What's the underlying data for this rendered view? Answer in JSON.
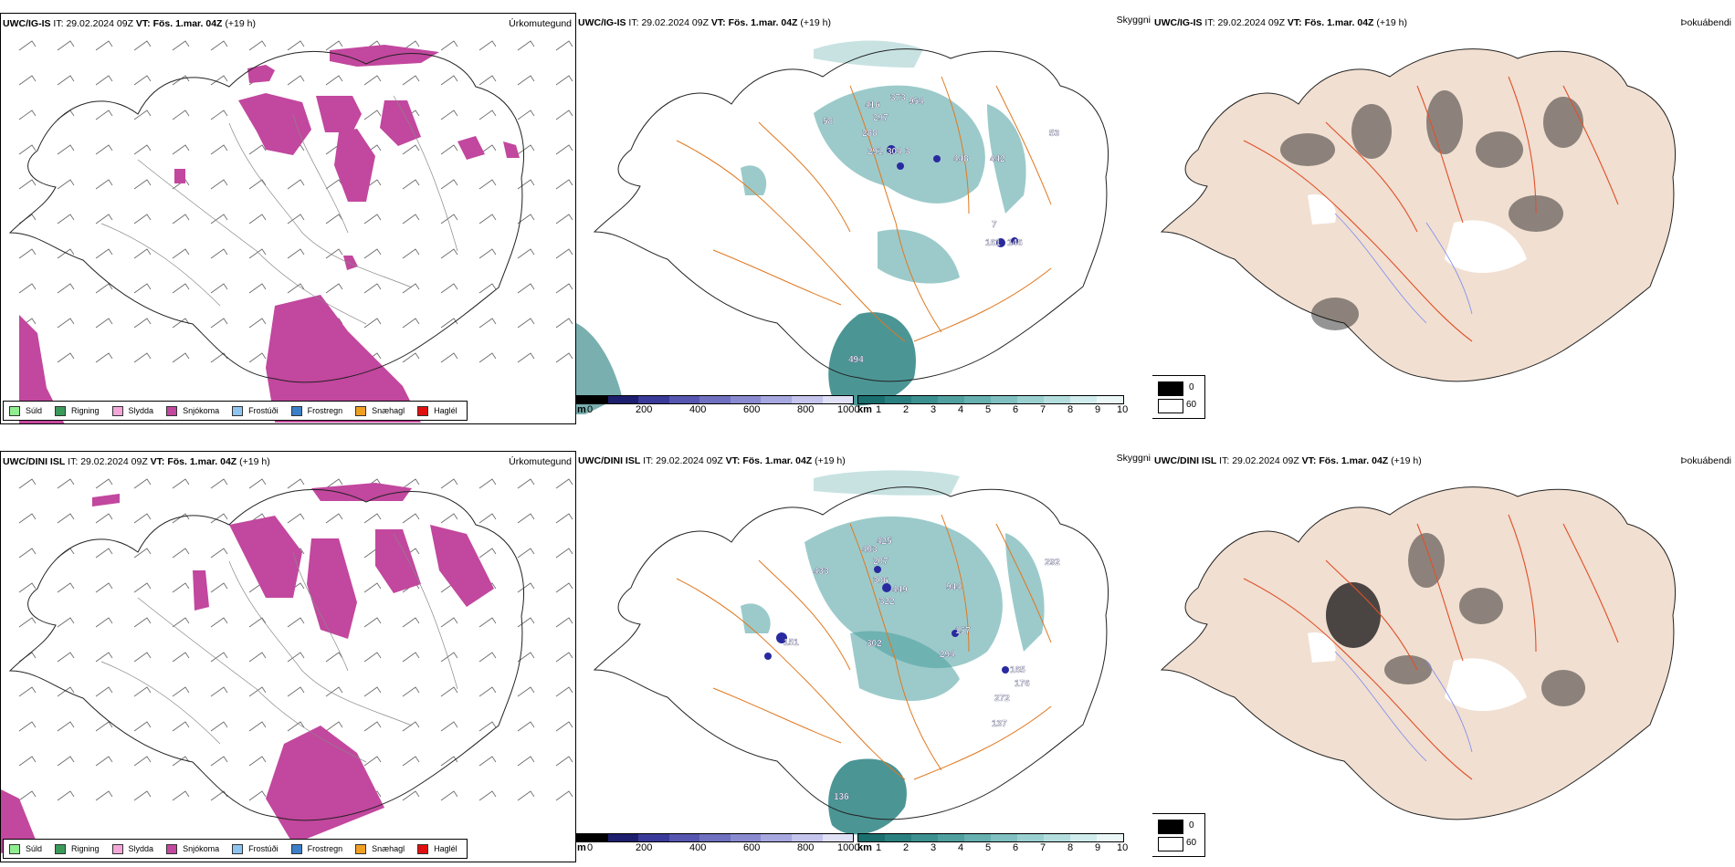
{
  "panels_top": {
    "precip": {
      "model": "UWC/IG-IS",
      "it_label": "IT:",
      "it_value": "29.02.2024 09Z",
      "vt_label": "VT:",
      "vt_value": "Fös. 1.mar. 04Z",
      "lead": "(+19 h)",
      "title": "Úrkomutegund"
    },
    "visibility": {
      "model": "UWC/IG-IS",
      "it_label": "IT:",
      "it_value": "29.02.2024 09Z",
      "vt_label": "VT:",
      "vt_value": "Fös. 1.mar. 04Z",
      "lead": "(+19 h)",
      "title": "Skyggni"
    },
    "cloud": {
      "model": "UWC/IG-IS",
      "it_label": "IT:",
      "it_value": "29.02.2024 09Z",
      "vt_label": "VT:",
      "vt_value": "Fös. 1.mar. 04Z",
      "lead": "(+19 h)",
      "title": "Þokuábendi"
    }
  },
  "panels_bottom": {
    "precip": {
      "model": "UWC/DINI ISL",
      "it_label": "IT:",
      "it_value": "29.02.2024 09Z",
      "vt_label": "VT:",
      "vt_value": "Fös. 1.mar. 04Z",
      "lead": "(+19 h)",
      "title": "Úrkomutegund"
    },
    "visibility": {
      "model": "UWC/DINI ISL",
      "it_label": "IT:",
      "it_value": "29.02.2024 09Z",
      "vt_label": "VT:",
      "vt_value": "Fös. 1.mar. 04Z",
      "lead": "(+19 h)",
      "title": "Skyggni"
    },
    "cloud": {
      "model": "UWC/DINI ISL",
      "it_label": "IT:",
      "it_value": "29.02.2024 09Z",
      "vt_label": "VT:",
      "vt_value": "Fös. 1.mar. 04Z",
      "lead": "(+19 h)",
      "title": "Þokuábendi"
    }
  },
  "precip_legend": [
    {
      "label": "Súld",
      "color": "#90ee90"
    },
    {
      "label": "Rigning",
      "color": "#3a9a5a"
    },
    {
      "label": "Slydda",
      "color": "#f4a6d8"
    },
    {
      "label": "Snjókoma",
      "color": "#c2479e"
    },
    {
      "label": "Frostúði",
      "color": "#8ec4f0"
    },
    {
      "label": "Frostregn",
      "color": "#3a7fc8"
    },
    {
      "label": "Snæhagl",
      "color": "#f0a020"
    },
    {
      "label": "Haglél",
      "color": "#e01010"
    }
  ],
  "vis_scale_m": {
    "unit": "m",
    "ticks": [
      "0",
      "200",
      "400",
      "600",
      "800",
      "1000"
    ],
    "colors": [
      "#000000",
      "#1e1e6e",
      "#3a3a9a",
      "#5656b0",
      "#7070c0",
      "#8a8ad0",
      "#a8a8e0",
      "#c4c4ec",
      "#e0e0f6"
    ]
  },
  "vis_scale_km": {
    "unit": "km",
    "ticks": [
      "1",
      "2",
      "3",
      "4",
      "5",
      "6",
      "7",
      "8",
      "9",
      "10"
    ],
    "colors": [
      "#1a6e6e",
      "#2a8080",
      "#3c9090",
      "#50a0a0",
      "#66b0b0",
      "#80c0c0",
      "#9ad0d0",
      "#b4dede",
      "#d0ecec",
      "#ebf7f7"
    ]
  },
  "cloud_legend": {
    "black_label": "0",
    "white_label": "60"
  },
  "vis_labels_top": [
    "58",
    "416",
    "373",
    "954",
    "297",
    "288",
    "291",
    "304",
    "3",
    "448",
    "442",
    "53",
    "7",
    "161",
    "146",
    "494"
  ],
  "vis_labels_bottom": [
    "433",
    "403",
    "425",
    "207",
    "306",
    "449",
    "322",
    "944",
    "292",
    "157",
    "294",
    "151",
    "302",
    "165",
    "176",
    "272",
    "137",
    "136"
  ]
}
